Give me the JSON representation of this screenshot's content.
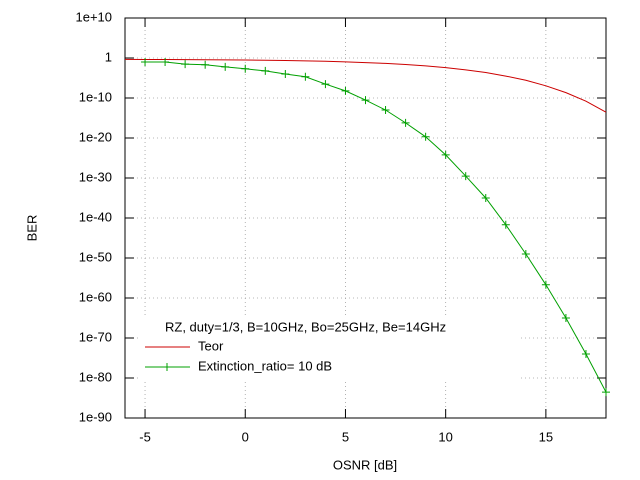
{
  "chart_data": {
    "type": "line",
    "legend_title": "RZ, duty=1/3, B=10GHz, Bo=25GHz, Be=14GHz",
    "xlabel": "OSNR [dB]",
    "ylabel": "BER",
    "xlim": [
      -6,
      18
    ],
    "xticks": [
      -5,
      0,
      5,
      10,
      15
    ],
    "ylim": [
      1e-90,
      10000000000.0
    ],
    "ylog": true,
    "grid": true,
    "yticks": [
      {
        "value": 10000000000.0,
        "label": "1e+10"
      },
      1,
      {
        "value": 1e-10,
        "label": "1e-10"
      },
      {
        "value": 1e-20,
        "label": "1e-20"
      },
      {
        "value": 1e-30,
        "label": "1e-30"
      },
      {
        "value": 1e-40,
        "label": "1e-40"
      },
      {
        "value": 1e-50,
        "label": "1e-50"
      },
      {
        "value": 1e-60,
        "label": "1e-60"
      },
      {
        "value": 1e-70,
        "label": "1e-70"
      },
      {
        "value": 1e-80,
        "label": "1e-80"
      },
      {
        "value": 1e-90,
        "label": "1e-90"
      }
    ],
    "series": [
      {
        "name": "Teor",
        "color": "#cc0000",
        "markers": false,
        "x": [
          -6,
          -5,
          -4,
          -3,
          -2,
          -1,
          0,
          1,
          2,
          3,
          4,
          5,
          6,
          7,
          8,
          9,
          10,
          11,
          12,
          13,
          14,
          15,
          16,
          17,
          18
        ],
        "values": [
          0.45,
          0.43,
          0.42,
          0.39,
          0.37,
          0.34,
          0.31,
          0.28,
          0.23,
          0.19,
          0.15,
          0.11,
          0.072,
          0.045,
          0.023,
          0.011,
          0.004,
          0.0011,
          0.00024,
          3e-05,
          2.7e-06,
          1.1e-07,
          2.2e-09,
          1.6e-11,
          2.8e-14
        ]
      },
      {
        "name": "Extinction_ratio= 10 dB",
        "color": "#00a000",
        "markers": true,
        "x": [
          -5,
          -4,
          -3,
          -2,
          -1,
          0,
          1,
          2,
          3,
          4,
          5,
          6,
          7,
          8,
          9,
          10,
          11,
          12,
          13,
          14,
          15,
          16,
          17,
          18
        ],
        "values": [
          0.1,
          0.1,
          0.03,
          0.02,
          0.006,
          0.002,
          0.0006,
          0.0001,
          2e-05,
          3e-07,
          6e-09,
          3e-11,
          1e-13,
          6e-17,
          2e-20,
          6e-25,
          3e-30,
          1e-35,
          2e-42,
          1e-49,
          2e-57,
          1e-65,
          1e-74,
          3e-84
        ]
      }
    ]
  }
}
